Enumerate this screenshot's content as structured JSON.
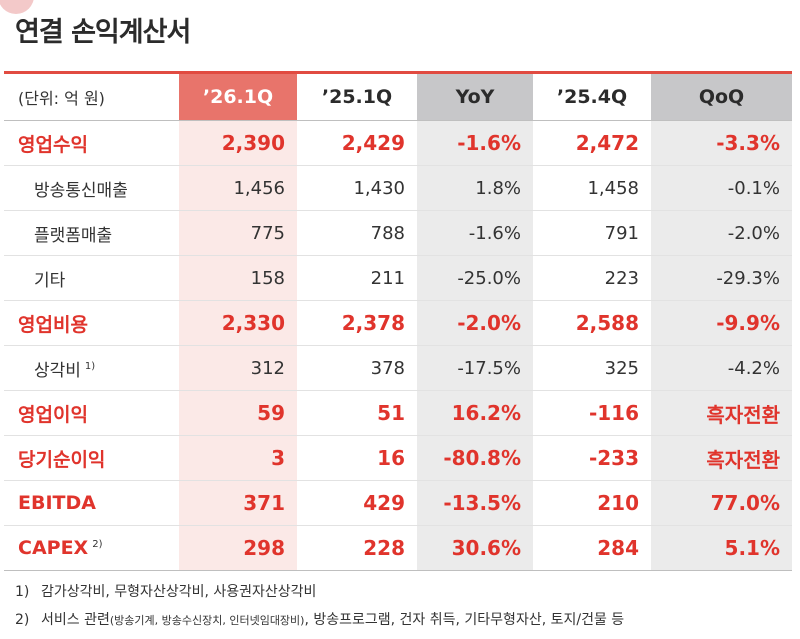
{
  "title": "연결 손익계산서",
  "table": {
    "unit": "(단위: 억 원)",
    "columns": [
      "’26.1Q",
      "’25.1Q",
      "YoY",
      "’25.4Q",
      "QoQ"
    ],
    "rows": [
      {
        "label": "영업수익",
        "sup": "",
        "values": [
          "2,390",
          "2,429",
          "-1.6%",
          "2,472",
          "-3.3%"
        ]
      },
      {
        "label": "방송통신매출",
        "sup": "",
        "values": [
          "1,456",
          "1,430",
          "1.8%",
          "1,458",
          "-0.1%"
        ]
      },
      {
        "label": "플랫폼매출",
        "sup": "",
        "values": [
          "775",
          "788",
          "-1.6%",
          "791",
          "-2.0%"
        ]
      },
      {
        "label": "기타",
        "sup": "",
        "values": [
          "158",
          "211",
          "-25.0%",
          "223",
          "-29.3%"
        ]
      },
      {
        "label": "영업비용",
        "sup": "",
        "values": [
          "2,330",
          "2,378",
          "-2.0%",
          "2,588",
          "-9.9%"
        ]
      },
      {
        "label": "상각비",
        "sup": "1)",
        "values": [
          "312",
          "378",
          "-17.5%",
          "325",
          "-4.2%"
        ]
      },
      {
        "label": "영업이익",
        "sup": "",
        "values": [
          "59",
          "51",
          "16.2%",
          "-116",
          "흑자전환"
        ]
      },
      {
        "label": "당기순이익",
        "sup": "",
        "values": [
          "3",
          "16",
          "-80.8%",
          "-233",
          "흑자전환"
        ]
      },
      {
        "label": "EBITDA",
        "sup": "",
        "values": [
          "371",
          "429",
          "-13.5%",
          "210",
          "77.0%"
        ]
      },
      {
        "label": "CAPEX",
        "sup": "2)",
        "values": [
          "298",
          "228",
          "30.6%",
          "284",
          "5.1%"
        ]
      }
    ]
  },
  "footnotes": [
    {
      "num": "1)",
      "text": "감가상각비, 무형자산상각비, 사용권자산상각비",
      "small": "",
      "rest": ""
    },
    {
      "num": "2)",
      "text": "서비스 관련",
      "small": "(방송기계, 방송수신장치, 인터넷임대장비)",
      "rest": ", 방송프로그램, 건자 취득, 기타무형자산, 토지/건물 등"
    }
  ]
}
